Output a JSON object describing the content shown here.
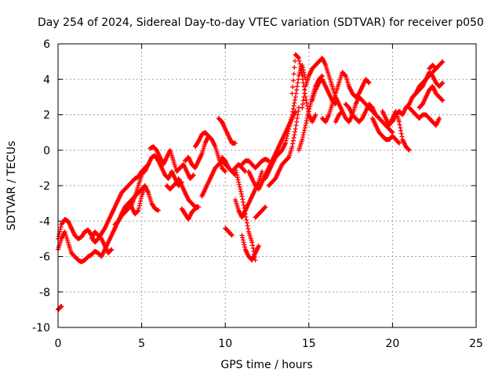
{
  "chart_data": {
    "type": "scatter",
    "title": "Day 254 of 2024, Sidereal Day-to-day VTEC variation (SDTVAR) for receiver p050",
    "xlabel": "GPS time / hours",
    "ylabel": "SDTVAR / TECUs",
    "xlim": [
      0,
      25
    ],
    "ylim": [
      -10,
      6
    ],
    "xticks": [
      "0",
      "5",
      "10",
      "15",
      "20",
      "25"
    ],
    "yticks": [
      "-10",
      "-8",
      "-6",
      "-4",
      "-2",
      "0",
      "2",
      "4",
      "6"
    ],
    "grid": true,
    "marker": "plus",
    "color": "#ff0000",
    "series": [
      {
        "x": [
          0.0,
          0.1,
          0.2
        ],
        "y": [
          -9.0,
          -8.9,
          -8.8
        ]
      },
      {
        "x": [
          0.0,
          0.2,
          0.4,
          0.6,
          0.8,
          1.0,
          1.2,
          1.4,
          1.6,
          1.8,
          2.0,
          2.2,
          2.4,
          2.6,
          2.8,
          3.0,
          3.2,
          3.4,
          3.6,
          3.8,
          4.0,
          4.2,
          4.4,
          4.6,
          4.8,
          5.0,
          5.2
        ],
        "y": [
          -5.6,
          -5.0,
          -4.6,
          -5.2,
          -5.8,
          -6.0,
          -6.2,
          -6.3,
          -6.2,
          -6.0,
          -5.9,
          -5.7,
          -5.8,
          -6.0,
          -5.6,
          -5.2,
          -4.8,
          -4.4,
          -4.0,
          -3.6,
          -3.2,
          -3.0,
          -2.8,
          -2.6,
          -2.4,
          -2.2,
          -2.0
        ]
      },
      {
        "x": [
          0.0,
          0.2,
          0.4,
          0.6,
          0.8,
          1.0,
          1.2,
          1.4,
          1.6,
          1.8,
          2.0,
          2.2,
          2.4,
          2.6,
          2.8,
          3.0,
          3.2,
          3.4,
          3.6,
          3.8,
          4.0,
          4.2,
          4.4,
          4.6,
          4.8,
          5.0,
          5.2,
          5.4
        ],
        "y": [
          -5.0,
          -4.2,
          -3.9,
          -4.0,
          -4.4,
          -4.8,
          -5.0,
          -4.9,
          -4.6,
          -4.5,
          -4.8,
          -5.2,
          -5.0,
          -4.7,
          -4.4,
          -4.0,
          -3.6,
          -3.2,
          -2.8,
          -2.4,
          -2.2,
          -2.0,
          -1.8,
          -1.6,
          -1.5,
          -1.2,
          -1.0,
          -0.8
        ]
      },
      {
        "x": [
          2.0,
          2.2,
          2.4,
          2.6,
          2.8,
          3.0,
          3.2
        ],
        "y": [
          -5.0,
          -4.6,
          -4.8,
          -5.0,
          -5.4,
          -5.8,
          -5.6
        ]
      },
      {
        "x": [
          3.4,
          3.6,
          3.8,
          4.0,
          4.2,
          4.4,
          4.6,
          4.8,
          5.0,
          5.2,
          5.4
        ],
        "y": [
          -4.2,
          -4.0,
          -3.7,
          -3.5,
          -3.3,
          -3.1,
          -2.6,
          -2.0,
          -1.4,
          -1.0,
          -0.8
        ]
      },
      {
        "x": [
          4.4,
          4.6,
          4.8,
          5.0,
          5.2,
          5.4,
          5.6,
          5.8,
          6.0
        ],
        "y": [
          -3.2,
          -3.6,
          -3.4,
          -2.6,
          -2.0,
          -2.4,
          -3.0,
          -3.3,
          -3.4
        ]
      },
      {
        "x": [
          5.2,
          5.4,
          5.6,
          5.8,
          6.0,
          6.2,
          6.4,
          6.6,
          6.8,
          7.0,
          7.2,
          7.4
        ],
        "y": [
          -1.2,
          -0.8,
          -0.4,
          -0.3,
          -0.6,
          -1.0,
          -1.4,
          -1.6,
          -1.2,
          -1.6,
          -2.0,
          -1.8
        ]
      },
      {
        "x": [
          5.5,
          5.7,
          5.9,
          6.1,
          6.3,
          6.5,
          6.7,
          6.9,
          7.1,
          7.3,
          7.5,
          7.7,
          7.9,
          8.1
        ],
        "y": [
          0.1,
          0.2,
          0.0,
          -0.4,
          -0.8,
          -0.4,
          0.0,
          -0.6,
          -1.2,
          -1.0,
          -0.8,
          -1.2,
          -1.6,
          -1.4
        ]
      },
      {
        "x": [
          6.5,
          6.7,
          6.9,
          7.1
        ],
        "y": [
          -2.0,
          -2.2,
          -2.0,
          -1.8
        ]
      },
      {
        "x": [
          7.2,
          7.4,
          7.6,
          7.8,
          8.0,
          8.2,
          8.4
        ],
        "y": [
          -1.6,
          -2.0,
          -2.4,
          -2.8,
          -3.0,
          -3.2,
          -3.2
        ]
      },
      {
        "x": [
          7.4,
          7.6,
          7.8,
          8.0,
          8.2,
          8.4
        ],
        "y": [
          -3.3,
          -3.6,
          -3.9,
          -3.5,
          -3.3,
          -3.2
        ]
      },
      {
        "x": [
          7.6,
          7.8,
          8.0,
          8.2,
          8.4,
          8.6,
          8.8,
          9.0,
          9.2,
          9.4,
          9.6,
          9.8,
          10.0
        ],
        "y": [
          -0.6,
          -0.4,
          -0.8,
          -1.0,
          -0.6,
          -0.2,
          0.4,
          0.8,
          0.6,
          0.2,
          -0.4,
          -1.0,
          -1.2
        ]
      },
      {
        "x": [
          8.2,
          8.4,
          8.6,
          8.8,
          9.0
        ],
        "y": [
          0.2,
          0.5,
          0.9,
          1.0,
          0.8
        ]
      },
      {
        "x": [
          8.6,
          8.8,
          9.0,
          9.2,
          9.4,
          9.6,
          9.8,
          10.0,
          10.2,
          10.4,
          10.6,
          10.8,
          11.0,
          11.2
        ],
        "y": [
          -2.6,
          -2.2,
          -1.8,
          -1.4,
          -1.0,
          -0.8,
          -0.6,
          -0.8,
          -1.0,
          -1.2,
          -1.0,
          -0.8,
          -1.0,
          -1.2
        ]
      },
      {
        "x": [
          9.6,
          9.8,
          10.0,
          10.2,
          10.4,
          10.6
        ],
        "y": [
          1.8,
          1.6,
          1.2,
          0.8,
          0.4,
          0.4
        ]
      },
      {
        "x": [
          9.8,
          10.0,
          10.2,
          10.4,
          10.6
        ],
        "y": [
          -0.4,
          -0.6,
          -1.0,
          -1.2,
          -1.4
        ]
      },
      {
        "x": [
          10.0,
          10.2,
          10.4
        ],
        "y": [
          -4.4,
          -4.6,
          -4.8
        ]
      },
      {
        "x": [
          10.6,
          10.8,
          11.0,
          11.2,
          11.4,
          11.6,
          11.8
        ],
        "y": [
          -1.0,
          -1.8,
          -2.6,
          -3.6,
          -4.6,
          -5.2,
          -6.2
        ]
      },
      {
        "x": [
          11.0,
          11.2,
          11.4,
          11.6,
          11.8,
          12.0
        ],
        "y": [
          -4.8,
          -5.6,
          -6.0,
          -6.2,
          -5.8,
          -5.4
        ]
      },
      {
        "x": [
          10.6,
          10.8,
          11.0,
          11.2,
          11.4,
          11.6,
          11.8,
          12.0,
          12.2
        ],
        "y": [
          -2.8,
          -3.4,
          -3.8,
          -3.4,
          -3.0,
          -2.6,
          -2.2,
          -1.8,
          -1.2
        ]
      },
      {
        "x": [
          11.0,
          11.2,
          11.4,
          11.6,
          11.8,
          12.0,
          12.2,
          12.4,
          12.6
        ],
        "y": [
          -0.8,
          -0.6,
          -0.6,
          -0.8,
          -1.0,
          -0.8,
          -0.6,
          -0.5,
          -0.6
        ]
      },
      {
        "x": [
          11.4,
          11.6,
          11.8,
          12.0,
          12.2,
          12.4,
          12.6,
          12.8,
          13.0,
          13.2
        ],
        "y": [
          -1.2,
          -1.6,
          -2.0,
          -2.2,
          -1.8,
          -1.4,
          -1.0,
          -0.6,
          -0.2,
          0.2
        ]
      },
      {
        "x": [
          11.8,
          12.0,
          12.2,
          12.4
        ],
        "y": [
          -3.8,
          -3.6,
          -3.4,
          -3.2
        ]
      },
      {
        "x": [
          12.4,
          12.6,
          12.8,
          13.0,
          13.2,
          13.4,
          13.6,
          13.8,
          14.0,
          14.2,
          14.4,
          14.6,
          14.8
        ],
        "y": [
          -1.6,
          -1.2,
          -0.8,
          -0.4,
          -0.2,
          0.0,
          0.4,
          1.2,
          2.0,
          3.0,
          4.2,
          4.8,
          4.0
        ]
      },
      {
        "x": [
          12.6,
          12.8,
          13.0,
          13.2,
          13.4,
          13.6,
          13.8,
          14.0,
          14.2,
          14.4
        ],
        "y": [
          -2.0,
          -1.8,
          -1.6,
          -1.2,
          -0.8,
          -0.6,
          -0.4,
          0.2,
          1.2,
          2.4
        ]
      },
      {
        "x": [
          13.2,
          13.4,
          13.6,
          13.8,
          14.0,
          14.2
        ],
        "y": [
          0.2,
          0.6,
          1.0,
          1.4,
          1.8,
          2.2
        ]
      },
      {
        "x": [
          14.0,
          14.2,
          14.4,
          14.6,
          14.8,
          15.0,
          15.2,
          15.4
        ],
        "y": [
          3.2,
          5.4,
          5.2,
          4.2,
          3.0,
          2.0,
          1.6,
          2.0
        ]
      },
      {
        "x": [
          14.6,
          14.8,
          15.0,
          15.2,
          15.4,
          15.6,
          15.8,
          16.0,
          16.2,
          16.4,
          16.6,
          16.8,
          17.0
        ],
        "y": [
          2.4,
          3.6,
          4.2,
          4.6,
          4.8,
          5.0,
          5.2,
          4.8,
          4.2,
          3.6,
          3.0,
          2.6,
          2.2
        ]
      },
      {
        "x": [
          14.4,
          14.6,
          14.8,
          15.0,
          15.2,
          15.4,
          15.6,
          15.8
        ],
        "y": [
          0.0,
          0.6,
          1.4,
          2.2,
          3.0,
          3.6,
          4.0,
          4.2
        ]
      },
      {
        "x": [
          15.2,
          15.4,
          15.6,
          15.8,
          16.0,
          16.2,
          16.4,
          16.6
        ],
        "y": [
          2.8,
          3.4,
          3.8,
          4.0,
          3.6,
          3.2,
          2.8,
          2.6
        ]
      },
      {
        "x": [
          15.8,
          16.0,
          16.2,
          16.4,
          16.6,
          16.8,
          17.0,
          17.2,
          17.4,
          17.6,
          17.8,
          18.0,
          18.2,
          18.4,
          18.6
        ],
        "y": [
          1.8,
          1.6,
          2.0,
          2.6,
          3.2,
          3.8,
          4.4,
          4.2,
          3.6,
          3.2,
          3.0,
          3.2,
          3.6,
          4.0,
          3.8
        ]
      },
      {
        "x": [
          16.6,
          16.8,
          17.0,
          17.2,
          17.4,
          17.6,
          17.8,
          18.0,
          18.2,
          18.4,
          18.6,
          18.8,
          19.0
        ],
        "y": [
          1.6,
          2.0,
          2.2,
          1.8,
          1.6,
          2.0,
          2.6,
          3.0,
          2.8,
          2.6,
          2.4,
          2.2,
          2.0
        ]
      },
      {
        "x": [
          17.2,
          17.4,
          17.6,
          17.8,
          18.0,
          18.2,
          18.4,
          18.6,
          18.8,
          19.0,
          19.2,
          19.4,
          19.6,
          19.8,
          20.0
        ],
        "y": [
          2.6,
          2.4,
          2.0,
          1.8,
          1.6,
          1.8,
          2.2,
          2.6,
          2.4,
          2.0,
          1.8,
          1.6,
          1.4,
          1.2,
          1.0
        ]
      },
      {
        "x": [
          18.8,
          19.0,
          19.2,
          19.4,
          19.6,
          19.8,
          20.0,
          20.2,
          20.4
        ],
        "y": [
          1.8,
          1.4,
          1.0,
          0.8,
          0.6,
          0.6,
          0.8,
          0.6,
          0.4
        ]
      },
      {
        "x": [
          19.4,
          19.6,
          19.8,
          20.0,
          20.2,
          20.4,
          20.6,
          20.8,
          21.0
        ],
        "y": [
          2.2,
          1.8,
          1.4,
          1.8,
          2.2,
          1.6,
          0.6,
          0.2,
          0.0
        ]
      },
      {
        "x": [
          20.0,
          20.2,
          20.4,
          20.6,
          20.8,
          21.0,
          21.2,
          21.4,
          21.6,
          21.8,
          22.0,
          22.2,
          22.4,
          22.6,
          22.8,
          23.0
        ],
        "y": [
          1.6,
          2.0,
          2.2,
          2.0,
          2.4,
          2.6,
          3.0,
          3.2,
          3.6,
          3.8,
          4.0,
          4.2,
          4.4,
          4.6,
          4.8,
          5.0
        ]
      },
      {
        "x": [
          21.0,
          21.2,
          21.4,
          21.6,
          21.8,
          22.0,
          22.2,
          22.4,
          22.6,
          22.8
        ],
        "y": [
          2.4,
          2.2,
          2.0,
          1.8,
          2.0,
          2.0,
          1.8,
          1.6,
          1.4,
          1.8
        ]
      },
      {
        "x": [
          21.2,
          21.4,
          21.6,
          21.8,
          22.0,
          22.2,
          22.4,
          22.6,
          22.8,
          23.0
        ],
        "y": [
          3.0,
          3.2,
          3.4,
          3.6,
          4.0,
          4.4,
          4.2,
          3.8,
          3.6,
          3.8
        ]
      },
      {
        "x": [
          21.6,
          21.8,
          22.0,
          22.2,
          22.4,
          22.6,
          22.8,
          23.0
        ],
        "y": [
          2.4,
          2.6,
          3.0,
          3.4,
          3.6,
          3.2,
          3.0,
          2.8
        ]
      },
      {
        "x": [
          22.2,
          22.4,
          22.6
        ],
        "y": [
          4.6,
          4.8,
          4.6
        ]
      }
    ]
  }
}
